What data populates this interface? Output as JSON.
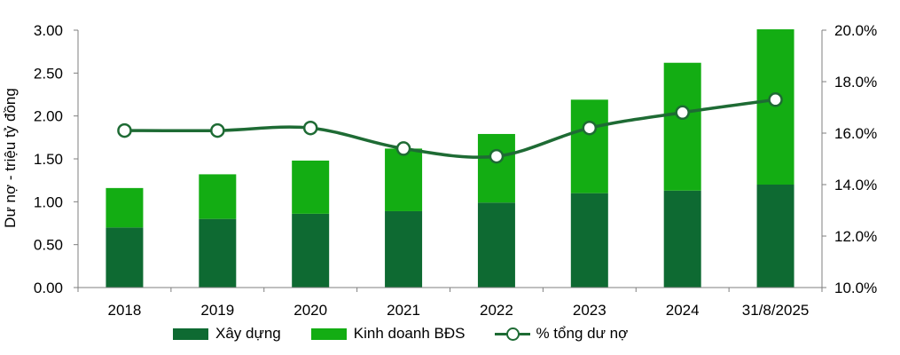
{
  "colors": {
    "construction": "#0e6a32",
    "real_estate": "#13ad13",
    "line": "#1e6b34",
    "axis": "#7f7f7f"
  },
  "chart_data": {
    "type": "bar",
    "stacked": true,
    "categories": [
      "2018",
      "2019",
      "2020",
      "2021",
      "2022",
      "2023",
      "2024",
      "31/8/2025"
    ],
    "series": [
      {
        "name": "Xây dựng",
        "type": "bar",
        "axis": "left",
        "values": [
          0.7,
          0.8,
          0.86,
          0.89,
          0.99,
          1.1,
          1.13,
          1.2
        ]
      },
      {
        "name": "Kinh doanh BĐS",
        "type": "bar",
        "axis": "left",
        "values": [
          0.46,
          0.52,
          0.62,
          0.73,
          0.8,
          1.09,
          1.49,
          1.81
        ]
      },
      {
        "name": "% tổng dư nợ",
        "type": "line",
        "axis": "right",
        "values": [
          16.1,
          16.1,
          16.2,
          15.4,
          15.1,
          16.2,
          16.8,
          17.3
        ]
      }
    ],
    "ylabel": "Dư nợ - triệu tỷ đồng",
    "ylim": [
      0,
      3.0
    ],
    "yticks": [
      "0.00",
      "0.50",
      "1.00",
      "1.50",
      "2.00",
      "2.50",
      "3.00"
    ],
    "y2lim": [
      10,
      20
    ],
    "y2ticks": [
      "10.0%",
      "12.0%",
      "14.0%",
      "16.0%",
      "18.0%",
      "20.0%"
    ],
    "legend_position": "bottom",
    "grid": false
  }
}
